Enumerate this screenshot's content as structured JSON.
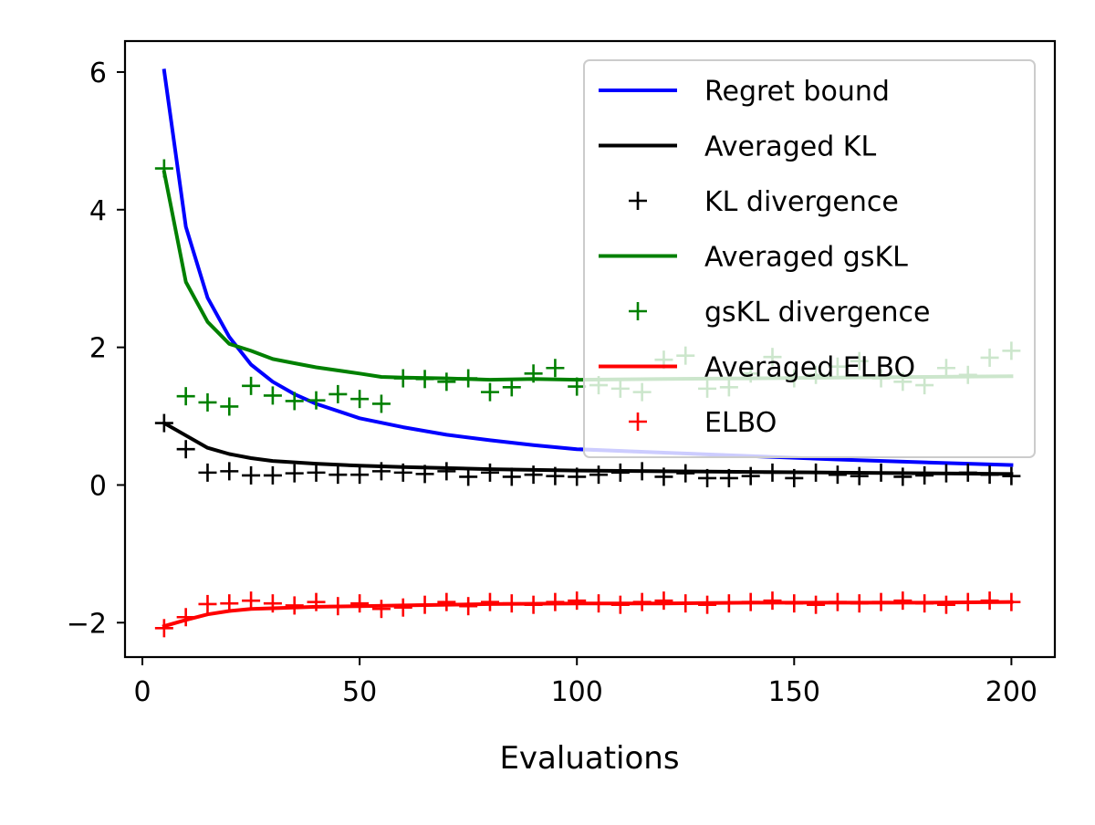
{
  "chart_data": {
    "type": "line",
    "title": "",
    "xlabel": "Evaluations",
    "ylabel": "",
    "xlim": [
      -4,
      210
    ],
    "ylim": [
      -2.5,
      6.45
    ],
    "xticks": [
      0,
      50,
      100,
      150,
      200
    ],
    "yticks": [
      -2,
      0,
      2,
      4,
      6
    ],
    "xtick_labels": [
      "0",
      "50",
      "100",
      "150",
      "200"
    ],
    "ytick_labels": [
      "−2",
      "0",
      "2",
      "4",
      "6"
    ],
    "grid": false,
    "legend_position": "top-right",
    "series": [
      {
        "name": "Regret bound",
        "kind": "line",
        "color": "#0000ff",
        "x": [
          5,
          10,
          15,
          20,
          25,
          30,
          35,
          40,
          50,
          60,
          70,
          80,
          90,
          100,
          120,
          140,
          160,
          180,
          200
        ],
        "y": [
          6.02,
          3.75,
          2.72,
          2.15,
          1.75,
          1.5,
          1.32,
          1.18,
          0.97,
          0.84,
          0.73,
          0.65,
          0.58,
          0.52,
          0.47,
          0.42,
          0.37,
          0.33,
          0.29
        ]
      },
      {
        "name": "Averaged KL",
        "kind": "line",
        "color": "#000000",
        "x": [
          5,
          10,
          15,
          20,
          25,
          30,
          40,
          50,
          60,
          80,
          100,
          120,
          140,
          160,
          180,
          200
        ],
        "y": [
          0.9,
          0.72,
          0.54,
          0.45,
          0.39,
          0.35,
          0.31,
          0.28,
          0.26,
          0.23,
          0.21,
          0.2,
          0.19,
          0.18,
          0.17,
          0.16
        ]
      },
      {
        "name": "KL divergence",
        "kind": "scatter",
        "color": "#000000",
        "x": [
          5,
          10,
          15,
          20,
          25,
          30,
          35,
          40,
          45,
          50,
          55,
          60,
          65,
          70,
          75,
          80,
          85,
          90,
          95,
          100,
          105,
          110,
          115,
          120,
          125,
          130,
          135,
          140,
          145,
          150,
          155,
          160,
          165,
          170,
          175,
          180,
          185,
          190,
          195,
          200
        ],
        "y": [
          0.9,
          0.52,
          0.18,
          0.2,
          0.14,
          0.14,
          0.17,
          0.18,
          0.15,
          0.15,
          0.2,
          0.18,
          0.16,
          0.2,
          0.12,
          0.18,
          0.12,
          0.15,
          0.13,
          0.12,
          0.15,
          0.18,
          0.2,
          0.12,
          0.17,
          0.1,
          0.1,
          0.13,
          0.18,
          0.1,
          0.18,
          0.15,
          0.13,
          0.18,
          0.12,
          0.14,
          0.17,
          0.18,
          0.15,
          0.13
        ]
      },
      {
        "name": "Averaged gsKL",
        "kind": "line",
        "color": "#008000",
        "x": [
          5,
          10,
          15,
          20,
          25,
          30,
          35,
          40,
          50,
          55,
          60,
          70,
          80,
          90,
          100,
          120,
          140,
          160,
          180,
          200
        ],
        "y": [
          4.55,
          2.95,
          2.37,
          2.05,
          1.95,
          1.83,
          1.77,
          1.71,
          1.62,
          1.57,
          1.56,
          1.55,
          1.53,
          1.54,
          1.53,
          1.54,
          1.55,
          1.56,
          1.57,
          1.58
        ]
      },
      {
        "name": "gsKL divergence",
        "kind": "scatter",
        "color": "#008000",
        "x": [
          5,
          10,
          15,
          20,
          25,
          30,
          35,
          40,
          45,
          50,
          55,
          60,
          65,
          70,
          75,
          80,
          85,
          90,
          95,
          100,
          105,
          110,
          115,
          120,
          125,
          130,
          135,
          140,
          145,
          150,
          155,
          160,
          165,
          170,
          175,
          180,
          185,
          190,
          195,
          200
        ],
        "y": [
          4.6,
          1.29,
          1.2,
          1.14,
          1.44,
          1.3,
          1.22,
          1.23,
          1.32,
          1.25,
          1.18,
          1.55,
          1.54,
          1.5,
          1.55,
          1.35,
          1.42,
          1.62,
          1.7,
          1.43,
          1.45,
          1.4,
          1.35,
          1.82,
          1.88,
          1.4,
          1.42,
          1.62,
          1.86,
          1.55,
          1.6,
          1.72,
          1.8,
          1.55,
          1.5,
          1.45,
          1.7,
          1.6,
          1.85,
          1.95
        ]
      },
      {
        "name": "Averaged ELBO",
        "kind": "line",
        "color": "#ff0000",
        "x": [
          5,
          10,
          15,
          20,
          25,
          30,
          40,
          50,
          60,
          80,
          100,
          120,
          140,
          160,
          180,
          200
        ],
        "y": [
          -2.05,
          -1.96,
          -1.88,
          -1.83,
          -1.8,
          -1.79,
          -1.77,
          -1.76,
          -1.75,
          -1.73,
          -1.72,
          -1.72,
          -1.71,
          -1.71,
          -1.71,
          -1.7
        ]
      },
      {
        "name": "ELBO",
        "kind": "scatter",
        "color": "#ff0000",
        "x": [
          5,
          10,
          15,
          20,
          25,
          30,
          35,
          40,
          45,
          50,
          55,
          60,
          65,
          70,
          75,
          80,
          85,
          90,
          95,
          100,
          105,
          110,
          115,
          120,
          125,
          130,
          135,
          140,
          145,
          150,
          155,
          160,
          165,
          170,
          175,
          180,
          185,
          190,
          195,
          200
        ],
        "y": [
          -2.08,
          -1.92,
          -1.73,
          -1.72,
          -1.68,
          -1.72,
          -1.75,
          -1.7,
          -1.76,
          -1.72,
          -1.8,
          -1.78,
          -1.74,
          -1.7,
          -1.76,
          -1.7,
          -1.72,
          -1.74,
          -1.7,
          -1.68,
          -1.72,
          -1.74,
          -1.7,
          -1.68,
          -1.72,
          -1.74,
          -1.72,
          -1.7,
          -1.68,
          -1.72,
          -1.74,
          -1.7,
          -1.72,
          -1.7,
          -1.68,
          -1.72,
          -1.74,
          -1.7,
          -1.68,
          -1.7
        ]
      }
    ]
  }
}
